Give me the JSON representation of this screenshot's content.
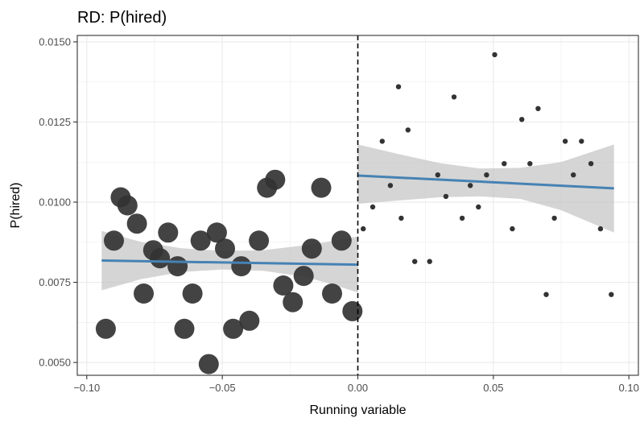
{
  "chart_data": {
    "type": "scatter",
    "title": "RD: P(hired)",
    "xlabel": "Running variable",
    "ylabel": "P(hired)",
    "xlim": [
      -0.1035,
      0.1035
    ],
    "ylim": [
      0.0046,
      0.0152
    ],
    "x_ticks": [
      -0.1,
      -0.05,
      0.0,
      0.05,
      0.1
    ],
    "x_tick_labels": [
      "−0.10",
      "−0.05",
      "0.00",
      "0.05",
      "0.10"
    ],
    "y_ticks": [
      0.005,
      0.0075,
      0.01,
      0.0125,
      0.015
    ],
    "y_tick_labels": [
      "0.0050",
      "0.0075",
      "0.0100",
      "0.0125",
      "0.0150"
    ],
    "cutoff": 0,
    "grid": true,
    "colors": {
      "points": "#333333",
      "fit_line": "#4682b4",
      "ribbon": "#bfbfbf",
      "grid": "#ebebeb"
    },
    "series": [
      {
        "side": "left",
        "marker_size": "large",
        "points": [
          {
            "x": -0.093,
            "y": 0.00605
          },
          {
            "x": -0.09,
            "y": 0.0088
          },
          {
            "x": -0.0875,
            "y": 0.01015
          },
          {
            "x": -0.085,
            "y": 0.0099
          },
          {
            "x": -0.0815,
            "y": 0.00933
          },
          {
            "x": -0.079,
            "y": 0.00715
          },
          {
            "x": -0.0755,
            "y": 0.0085
          },
          {
            "x": -0.073,
            "y": 0.00825
          },
          {
            "x": -0.07,
            "y": 0.00905
          },
          {
            "x": -0.0665,
            "y": 0.008
          },
          {
            "x": -0.064,
            "y": 0.00605
          },
          {
            "x": -0.061,
            "y": 0.00715
          },
          {
            "x": -0.058,
            "y": 0.0088
          },
          {
            "x": -0.055,
            "y": 0.00495
          },
          {
            "x": -0.052,
            "y": 0.00905
          },
          {
            "x": -0.049,
            "y": 0.00855
          },
          {
            "x": -0.046,
            "y": 0.00605
          },
          {
            "x": -0.043,
            "y": 0.008
          },
          {
            "x": -0.04,
            "y": 0.0063
          },
          {
            "x": -0.0365,
            "y": 0.0088
          },
          {
            "x": -0.0335,
            "y": 0.01045
          },
          {
            "x": -0.0305,
            "y": 0.0107
          },
          {
            "x": -0.0275,
            "y": 0.0074
          },
          {
            "x": -0.024,
            "y": 0.00688
          },
          {
            "x": -0.02,
            "y": 0.0077
          },
          {
            "x": -0.017,
            "y": 0.00855
          },
          {
            "x": -0.0135,
            "y": 0.01045
          },
          {
            "x": -0.0095,
            "y": 0.00715
          },
          {
            "x": -0.006,
            "y": 0.0088
          },
          {
            "x": -0.002,
            "y": 0.0066
          }
        ],
        "fit": {
          "x": [
            -0.0945,
            0.0
          ],
          "y": [
            0.00818,
            0.00805
          ]
        },
        "ribbon": {
          "x": [
            -0.0945,
            -0.08,
            -0.065,
            -0.05,
            -0.035,
            -0.02,
            -0.01,
            0.0
          ],
          "lower": [
            0.00725,
            0.0076,
            0.00782,
            0.0079,
            0.00786,
            0.00768,
            0.00745,
            0.00718
          ],
          "upper": [
            0.0091,
            0.00876,
            0.00856,
            0.00848,
            0.0085,
            0.00865,
            0.00878,
            0.00893
          ]
        }
      },
      {
        "side": "right",
        "marker_size": "small",
        "points": [
          {
            "x": 0.002,
            "y": 0.00917
          },
          {
            "x": 0.0055,
            "y": 0.00985
          },
          {
            "x": 0.009,
            "y": 0.0119
          },
          {
            "x": 0.012,
            "y": 0.01052
          },
          {
            "x": 0.015,
            "y": 0.0136
          },
          {
            "x": 0.016,
            "y": 0.0095
          },
          {
            "x": 0.0185,
            "y": 0.01225
          },
          {
            "x": 0.021,
            "y": 0.00815
          },
          {
            "x": 0.0265,
            "y": 0.00815
          },
          {
            "x": 0.0295,
            "y": 0.01085
          },
          {
            "x": 0.0325,
            "y": 0.01018
          },
          {
            "x": 0.0355,
            "y": 0.01328
          },
          {
            "x": 0.0385,
            "y": 0.0095
          },
          {
            "x": 0.0415,
            "y": 0.01052
          },
          {
            "x": 0.0445,
            "y": 0.00985
          },
          {
            "x": 0.0475,
            "y": 0.01085
          },
          {
            "x": 0.0505,
            "y": 0.0146
          },
          {
            "x": 0.054,
            "y": 0.0112
          },
          {
            "x": 0.057,
            "y": 0.00917
          },
          {
            "x": 0.0605,
            "y": 0.01258
          },
          {
            "x": 0.0635,
            "y": 0.0112
          },
          {
            "x": 0.0665,
            "y": 0.01292
          },
          {
            "x": 0.0695,
            "y": 0.00712
          },
          {
            "x": 0.0725,
            "y": 0.0095
          },
          {
            "x": 0.0765,
            "y": 0.0119
          },
          {
            "x": 0.0795,
            "y": 0.01085
          },
          {
            "x": 0.0825,
            "y": 0.0119
          },
          {
            "x": 0.086,
            "y": 0.0112
          },
          {
            "x": 0.0895,
            "y": 0.00917
          },
          {
            "x": 0.0935,
            "y": 0.00712
          }
        ],
        "fit": {
          "x": [
            0.0,
            0.0945
          ],
          "y": [
            0.01083,
            0.01043
          ]
        },
        "ribbon": {
          "x": [
            0.0,
            0.015,
            0.03,
            0.045,
            0.06,
            0.075,
            0.0945
          ],
          "lower": [
            0.00995,
            0.01005,
            0.01015,
            0.01018,
            0.0101,
            0.00975,
            0.00905
          ],
          "upper": [
            0.0118,
            0.0115,
            0.01122,
            0.01105,
            0.01107,
            0.01125,
            0.0118
          ]
        }
      }
    ]
  }
}
